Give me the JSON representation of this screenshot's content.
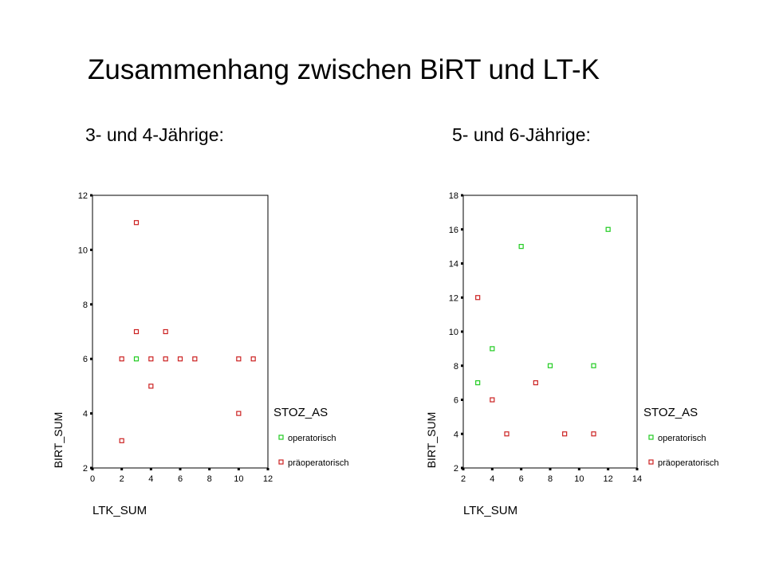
{
  "slide": {
    "title": "Zusammenhang zwischen BiRT und LT-K",
    "left_heading": "3- und 4-Jährige:",
    "right_heading": "5- und 6-Jährige:"
  },
  "colors": {
    "operatorisch": "#22cc22",
    "praeoperatorisch": "#cc2222",
    "axis": "#000000"
  },
  "chart_data": [
    {
      "type": "scatter",
      "xlabel": "LTK_SUM",
      "ylabel": "BIRT_SUM",
      "xlim": [
        0,
        12
      ],
      "ylim": [
        2,
        12
      ],
      "xticks": [
        0,
        2,
        4,
        6,
        8,
        10,
        12
      ],
      "yticks": [
        2,
        4,
        6,
        8,
        10,
        12
      ],
      "grid": false,
      "legend_title": "STOZ_AS",
      "legend_position": "right",
      "series": [
        {
          "name": "operatorisch",
          "points": [
            [
              3,
              6
            ]
          ]
        },
        {
          "name": "präoperatorisch",
          "points": [
            [
              2,
              3
            ],
            [
              2,
              6
            ],
            [
              3,
              11
            ],
            [
              3,
              7
            ],
            [
              4,
              6
            ],
            [
              4,
              5
            ],
            [
              5,
              7
            ],
            [
              5,
              6
            ],
            [
              6,
              6
            ],
            [
              7,
              6
            ],
            [
              10,
              6
            ],
            [
              10,
              4
            ],
            [
              11,
              6
            ]
          ]
        }
      ]
    },
    {
      "type": "scatter",
      "xlabel": "LTK_SUM",
      "ylabel": "BIRT_SUM",
      "xlim": [
        2,
        14
      ],
      "ylim": [
        2,
        18
      ],
      "xticks": [
        2,
        4,
        6,
        8,
        10,
        12,
        14
      ],
      "yticks": [
        2,
        4,
        6,
        8,
        10,
        12,
        14,
        16,
        18
      ],
      "grid": false,
      "legend_title": "STOZ_AS",
      "legend_position": "right",
      "series": [
        {
          "name": "operatorisch",
          "points": [
            [
              3,
              7
            ],
            [
              4,
              9
            ],
            [
              6,
              15
            ],
            [
              8,
              8
            ],
            [
              11,
              8
            ],
            [
              12,
              16
            ]
          ]
        },
        {
          "name": "präoperatorisch",
          "points": [
            [
              3,
              12
            ],
            [
              4,
              6
            ],
            [
              5,
              4
            ],
            [
              7,
              7
            ],
            [
              9,
              4
            ],
            [
              11,
              4
            ]
          ]
        }
      ]
    }
  ]
}
